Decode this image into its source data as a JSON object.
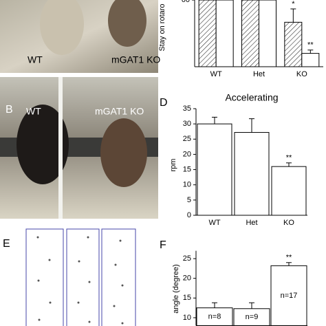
{
  "panels": {
    "A": {
      "labels": [
        "WT",
        "mGAT1 KO"
      ]
    },
    "B": {
      "letter": "B",
      "labels": [
        "WT",
        "mGAT1 KO"
      ]
    },
    "E": {
      "letter": "E"
    }
  },
  "chart_data": [
    {
      "type": "bar",
      "panel_label": null,
      "ylabel": "Stay on rotaro",
      "categories": [
        "WT",
        "Het",
        "KO"
      ],
      "ylim": [
        0,
        62
      ],
      "yticks": [
        60
      ],
      "series": [
        {
          "color": "#ffffff",
          "hatch": true,
          "values": [
            60,
            60,
            40
          ],
          "errors": [
            null,
            null,
            12
          ],
          "significance": [
            null,
            null,
            "*"
          ]
        },
        {
          "color": "#ffffff",
          "hatch": false,
          "values": [
            60,
            60,
            12
          ],
          "errors": [
            null,
            null,
            3
          ],
          "significance": [
            null,
            null,
            "**"
          ]
        }
      ]
    },
    {
      "type": "bar",
      "panel_label": "D",
      "title": "Accelerating",
      "ylabel": "rpm",
      "categories": [
        "WT",
        "Het",
        "KO"
      ],
      "ylim": [
        0,
        35
      ],
      "yticks": [
        0,
        5,
        10,
        15,
        20,
        25,
        30,
        35
      ],
      "series": [
        {
          "color": "#ffffff",
          "hatch": false,
          "values": [
            30,
            27.2,
            16
          ],
          "errors": [
            2.2,
            4.5,
            1.2
          ],
          "significance": [
            null,
            null,
            "**"
          ]
        }
      ]
    },
    {
      "type": "bar",
      "panel_label": "F",
      "ylabel": "angle (degree)",
      "categories": [
        null,
        null,
        null
      ],
      "ylim": [
        8,
        27
      ],
      "yticks": [
        10,
        15,
        20,
        25
      ],
      "series": [
        {
          "color": "#ffffff",
          "hatch": false,
          "values": [
            12.5,
            12.3,
            23.2
          ],
          "errors": [
            1.3,
            1.5,
            0.8
          ],
          "significance": [
            null,
            null,
            "**"
          ],
          "inner_labels": [
            "n=8",
            "n=9",
            "n=17"
          ]
        }
      ]
    }
  ]
}
